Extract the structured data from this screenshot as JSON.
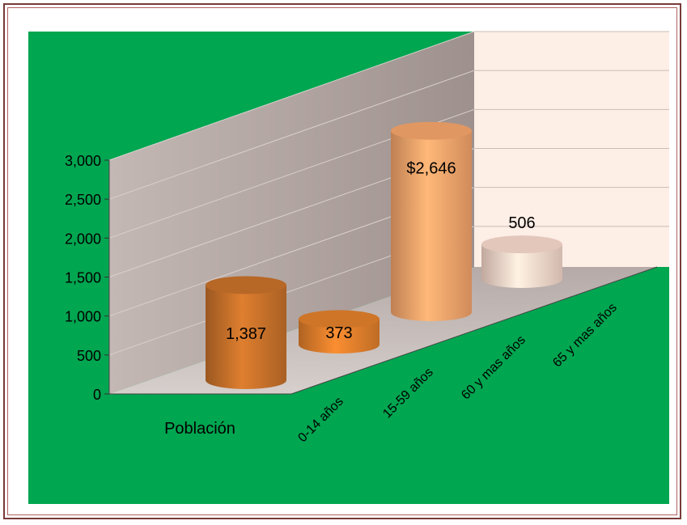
{
  "chart_data": {
    "type": "bar",
    "variant": "3d-cylinder",
    "categories": [
      "Población",
      "0-14 años",
      "15-59 años",
      "60 y mas años",
      "65 y mas años"
    ],
    "values": [
      1387,
      373,
      2646,
      506,
      null
    ],
    "data_labels": [
      "1,387",
      "373",
      "$2,646",
      "506",
      ""
    ],
    "y_ticks": [
      "0",
      "500",
      "1,000",
      "1,500",
      "2,000",
      "2,500",
      "3,000"
    ],
    "ylim": [
      0,
      3000
    ],
    "grid": true,
    "colors": {
      "background": "#00a650",
      "bars": [
        "#c7712a",
        "#e07f2c",
        "#f5a46b",
        "#f7d8cb"
      ],
      "back_wall": "#b8aaa6",
      "right_wall": "#fdeee6",
      "floor": "#c8bebb"
    }
  }
}
